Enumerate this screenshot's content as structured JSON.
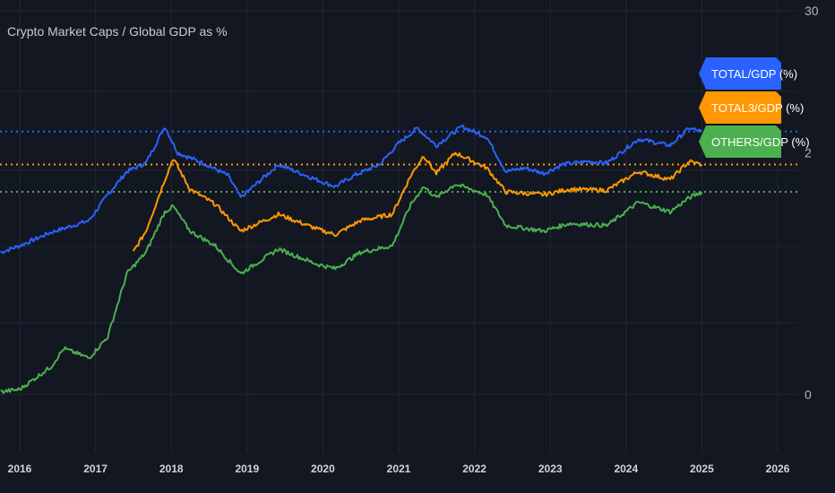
{
  "chart_data": {
    "type": "line",
    "title": "Crypto Market Caps / Global GDP as %",
    "xlabel": "",
    "ylabel": "",
    "y_scale": "log",
    "x_ticks": [
      "2016",
      "2017",
      "2018",
      "2019",
      "2020",
      "2021",
      "2022",
      "2023",
      "2024",
      "2025",
      "2026"
    ],
    "y_ticks": [
      {
        "value": 30,
        "label": "30"
      },
      {
        "value": 2,
        "label": "2"
      },
      {
        "value": 0.02,
        "label": "0"
      }
    ],
    "ylim": [
      0.01,
      30
    ],
    "grid": true,
    "legend": "right-edge value badges",
    "series": [
      {
        "name": "TOTAL/GDP (%)",
        "color": "#2962ff",
        "last_value_line": 3.0,
        "points": [
          [
            "2015-10-01",
            0.3
          ],
          [
            "2016-01-01",
            0.34
          ],
          [
            "2016-06-01",
            0.44
          ],
          [
            "2016-12-01",
            0.55
          ],
          [
            "2017-03-01",
            0.9
          ],
          [
            "2017-06-01",
            1.4
          ],
          [
            "2017-09-01",
            1.65
          ],
          [
            "2017-12-01",
            3.3
          ],
          [
            "2018-02-01",
            2.0
          ],
          [
            "2018-06-01",
            1.65
          ],
          [
            "2018-10-01",
            1.3
          ],
          [
            "2018-12-01",
            0.85
          ],
          [
            "2019-06-01",
            1.6
          ],
          [
            "2019-12-01",
            1.2
          ],
          [
            "2020-03-01",
            1.05
          ],
          [
            "2020-06-01",
            1.3
          ],
          [
            "2020-10-01",
            1.6
          ],
          [
            "2021-01-01",
            2.4
          ],
          [
            "2021-04-01",
            3.2
          ],
          [
            "2021-07-01",
            2.3
          ],
          [
            "2021-11-01",
            3.3
          ],
          [
            "2022-03-01",
            2.7
          ],
          [
            "2022-06-01",
            1.4
          ],
          [
            "2022-09-01",
            1.5
          ],
          [
            "2022-12-01",
            1.35
          ],
          [
            "2023-03-01",
            1.6
          ],
          [
            "2023-07-01",
            1.7
          ],
          [
            "2023-10-01",
            1.65
          ],
          [
            "2024-03-01",
            2.6
          ],
          [
            "2024-08-01",
            2.3
          ],
          [
            "2024-11-01",
            3.2
          ],
          [
            "2025-01-01",
            3.0
          ]
        ]
      },
      {
        "name": "TOTAL3/GDP (%)",
        "color": "#ff9800",
        "last_value_line": 1.6,
        "points": [
          [
            "2017-07-01",
            0.3
          ],
          [
            "2017-09-01",
            0.45
          ],
          [
            "2017-12-01",
            1.2
          ],
          [
            "2018-01-10",
            1.8
          ],
          [
            "2018-04-01",
            1.0
          ],
          [
            "2018-08-01",
            0.75
          ],
          [
            "2018-12-01",
            0.45
          ],
          [
            "2019-06-01",
            0.62
          ],
          [
            "2019-12-01",
            0.47
          ],
          [
            "2020-03-01",
            0.42
          ],
          [
            "2020-07-01",
            0.55
          ],
          [
            "2020-12-01",
            0.62
          ],
          [
            "2021-03-01",
            1.3
          ],
          [
            "2021-05-01",
            1.9
          ],
          [
            "2021-07-01",
            1.35
          ],
          [
            "2021-10-01",
            2.0
          ],
          [
            "2022-03-01",
            1.5
          ],
          [
            "2022-06-01",
            0.95
          ],
          [
            "2022-12-01",
            0.9
          ],
          [
            "2023-04-01",
            1.0
          ],
          [
            "2023-10-01",
            0.98
          ],
          [
            "2024-03-01",
            1.4
          ],
          [
            "2024-08-01",
            1.2
          ],
          [
            "2024-11-01",
            1.7
          ],
          [
            "2025-01-01",
            1.6
          ]
        ]
      },
      {
        "name": "OTHERS/GDP (%)",
        "color": "#4caf50",
        "last_value_line": 0.95,
        "points": [
          [
            "2015-10-01",
            0.021
          ],
          [
            "2016-01-01",
            0.022
          ],
          [
            "2016-06-01",
            0.034
          ],
          [
            "2016-08-01",
            0.048
          ],
          [
            "2016-12-01",
            0.04
          ],
          [
            "2017-03-01",
            0.06
          ],
          [
            "2017-06-01",
            0.2
          ],
          [
            "2017-09-01",
            0.3
          ],
          [
            "2017-12-01",
            0.65
          ],
          [
            "2018-01-10",
            0.72
          ],
          [
            "2018-04-01",
            0.45
          ],
          [
            "2018-08-01",
            0.34
          ],
          [
            "2018-12-01",
            0.2
          ],
          [
            "2019-06-01",
            0.32
          ],
          [
            "2019-12-01",
            0.24
          ],
          [
            "2020-03-01",
            0.22
          ],
          [
            "2020-07-01",
            0.3
          ],
          [
            "2020-12-01",
            0.34
          ],
          [
            "2021-03-01",
            0.75
          ],
          [
            "2021-05-01",
            1.05
          ],
          [
            "2021-07-01",
            0.85
          ],
          [
            "2021-10-01",
            1.1
          ],
          [
            "2022-03-01",
            0.9
          ],
          [
            "2022-06-01",
            0.5
          ],
          [
            "2022-12-01",
            0.45
          ],
          [
            "2023-04-01",
            0.52
          ],
          [
            "2023-10-01",
            0.5
          ],
          [
            "2024-03-01",
            0.78
          ],
          [
            "2024-08-01",
            0.65
          ],
          [
            "2024-11-01",
            0.85
          ],
          [
            "2025-01-01",
            0.95
          ]
        ]
      }
    ]
  }
}
